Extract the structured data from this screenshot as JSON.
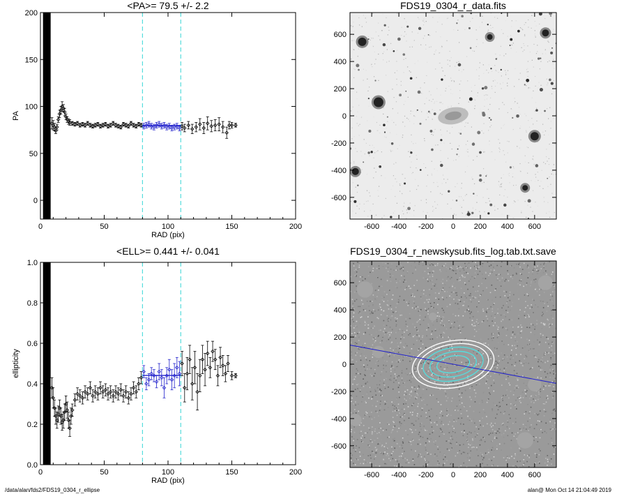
{
  "footer": {
    "left": "/data/alan/fds2/FDS19_0304_r_ellipse",
    "right": "alan@  Mon Oct 14 21:04:49 2019"
  },
  "colors": {
    "fit": "#2222cc",
    "dashed": "#55dddd",
    "points": "#000000"
  },
  "chart_data": [
    {
      "id": "pa",
      "type": "scatter",
      "title": "<PA>=  79.5 +/-   2.2",
      "xlabel": "RAD (pix)",
      "ylabel": "PA",
      "xlim": [
        0,
        200
      ],
      "ylim": [
        -20,
        200
      ],
      "xticks": [
        0,
        50,
        100,
        150,
        200
      ],
      "yticks": [
        0,
        50,
        100,
        150,
        200
      ],
      "vlines": [
        80,
        110
      ],
      "mean_line": {
        "x": [
          80,
          110
        ],
        "y": 79.5
      },
      "black_band": [
        2,
        8
      ],
      "points": [
        [
          9,
          82,
          6
        ],
        [
          10,
          80,
          5
        ],
        [
          11,
          78,
          4
        ],
        [
          12,
          74,
          3
        ],
        [
          13,
          78,
          3
        ],
        [
          14,
          86,
          3
        ],
        [
          15,
          92,
          4
        ],
        [
          16,
          96,
          4
        ],
        [
          17,
          100,
          5
        ],
        [
          18,
          98,
          4
        ],
        [
          19,
          94,
          4
        ],
        [
          20,
          89,
          3
        ],
        [
          21,
          86,
          3
        ],
        [
          22,
          84,
          3
        ],
        [
          23,
          83,
          3
        ],
        [
          25,
          82,
          2
        ],
        [
          27,
          81,
          2
        ],
        [
          29,
          82,
          2
        ],
        [
          31,
          80,
          2
        ],
        [
          33,
          81,
          2
        ],
        [
          35,
          80,
          2
        ],
        [
          37,
          82,
          2
        ],
        [
          39,
          80,
          2
        ],
        [
          41,
          79,
          2
        ],
        [
          43,
          80,
          2
        ],
        [
          45,
          81,
          2
        ],
        [
          47,
          79,
          2
        ],
        [
          49,
          80,
          2
        ],
        [
          51,
          81,
          2
        ],
        [
          53,
          79,
          2
        ],
        [
          55,
          80,
          2
        ],
        [
          57,
          82,
          2
        ],
        [
          59,
          80,
          2
        ],
        [
          61,
          79,
          2
        ],
        [
          63,
          78,
          2
        ],
        [
          65,
          81,
          2
        ],
        [
          67,
          80,
          2
        ],
        [
          69,
          79,
          2
        ],
        [
          71,
          82,
          2
        ],
        [
          73,
          80,
          2
        ],
        [
          75,
          79,
          2
        ],
        [
          77,
          81,
          2
        ],
        [
          79,
          80,
          2
        ],
        [
          81,
          79,
          3
        ],
        [
          83,
          80,
          3
        ],
        [
          85,
          81,
          3
        ],
        [
          87,
          79,
          3
        ],
        [
          89,
          78,
          3
        ],
        [
          91,
          80,
          3
        ],
        [
          93,
          81,
          3
        ],
        [
          95,
          79,
          3
        ],
        [
          97,
          80,
          3
        ],
        [
          99,
          78,
          3
        ],
        [
          101,
          79,
          3
        ],
        [
          103,
          77,
          3
        ],
        [
          105,
          78,
          3
        ],
        [
          107,
          79,
          3
        ],
        [
          109,
          77,
          3
        ],
        [
          111,
          79,
          4
        ],
        [
          113,
          77,
          4
        ],
        [
          116,
          80,
          4
        ],
        [
          119,
          76,
          5
        ],
        [
          122,
          78,
          5
        ],
        [
          125,
          81,
          6
        ],
        [
          128,
          77,
          6
        ],
        [
          131,
          82,
          7
        ],
        [
          134,
          79,
          6
        ],
        [
          137,
          80,
          6
        ],
        [
          140,
          81,
          7
        ],
        [
          143,
          78,
          6
        ],
        [
          146,
          72,
          6
        ],
        [
          148,
          80,
          4
        ],
        [
          150,
          80,
          3
        ],
        [
          153,
          80,
          2
        ]
      ]
    },
    {
      "id": "ell",
      "type": "scatter",
      "title": "<ELL>= 0.441 +/-  0.041",
      "xlabel": "RAD (pix)",
      "ylabel": "ellipticity",
      "xlim": [
        0,
        200
      ],
      "ylim": [
        0.0,
        1.0
      ],
      "xticks": [
        0,
        50,
        100,
        150,
        200
      ],
      "yticks": [
        0.0,
        0.2,
        0.4,
        0.6,
        0.8,
        1.0
      ],
      "ytick_labels": [
        "0.0",
        "0.2",
        "0.4",
        "0.6",
        "0.8",
        "1.0"
      ],
      "vlines": [
        80,
        110
      ],
      "mean_line": {
        "x": [
          80,
          110
        ],
        "y": 0.441
      },
      "black_band": [
        2,
        8
      ],
      "points": [
        [
          9,
          0.38,
          0.05
        ],
        [
          10,
          0.33,
          0.05
        ],
        [
          11,
          0.28,
          0.04
        ],
        [
          12,
          0.24,
          0.04
        ],
        [
          13,
          0.22,
          0.04
        ],
        [
          14,
          0.25,
          0.04
        ],
        [
          15,
          0.28,
          0.04
        ],
        [
          16,
          0.24,
          0.04
        ],
        [
          17,
          0.21,
          0.04
        ],
        [
          18,
          0.22,
          0.04
        ],
        [
          19,
          0.26,
          0.04
        ],
        [
          20,
          0.3,
          0.04
        ],
        [
          21,
          0.27,
          0.04
        ],
        [
          22,
          0.22,
          0.04
        ],
        [
          23,
          0.18,
          0.04
        ],
        [
          24,
          0.24,
          0.04
        ],
        [
          25,
          0.27,
          0.03
        ],
        [
          27,
          0.32,
          0.03
        ],
        [
          29,
          0.35,
          0.03
        ],
        [
          31,
          0.34,
          0.03
        ],
        [
          33,
          0.33,
          0.03
        ],
        [
          35,
          0.36,
          0.03
        ],
        [
          37,
          0.35,
          0.03
        ],
        [
          39,
          0.38,
          0.03
        ],
        [
          41,
          0.34,
          0.03
        ],
        [
          43,
          0.36,
          0.03
        ],
        [
          45,
          0.35,
          0.03
        ],
        [
          47,
          0.38,
          0.03
        ],
        [
          49,
          0.36,
          0.03
        ],
        [
          51,
          0.37,
          0.03
        ],
        [
          53,
          0.35,
          0.03
        ],
        [
          55,
          0.36,
          0.03
        ],
        [
          57,
          0.34,
          0.03
        ],
        [
          59,
          0.36,
          0.03
        ],
        [
          61,
          0.35,
          0.03
        ],
        [
          63,
          0.37,
          0.03
        ],
        [
          65,
          0.34,
          0.03
        ],
        [
          67,
          0.36,
          0.03
        ],
        [
          69,
          0.33,
          0.03
        ],
        [
          71,
          0.35,
          0.03
        ],
        [
          73,
          0.38,
          0.03
        ],
        [
          75,
          0.36,
          0.03
        ],
        [
          77,
          0.4,
          0.03
        ],
        [
          79,
          0.43,
          0.03
        ],
        [
          81,
          0.46,
          0.03
        ],
        [
          83,
          0.4,
          0.03
        ],
        [
          85,
          0.42,
          0.03
        ],
        [
          87,
          0.45,
          0.03
        ],
        [
          89,
          0.44,
          0.03
        ],
        [
          91,
          0.41,
          0.03
        ],
        [
          93,
          0.46,
          0.04
        ],
        [
          95,
          0.43,
          0.04
        ],
        [
          97,
          0.38,
          0.05
        ],
        [
          99,
          0.44,
          0.04
        ],
        [
          101,
          0.47,
          0.05
        ],
        [
          103,
          0.42,
          0.05
        ],
        [
          105,
          0.44,
          0.06
        ],
        [
          107,
          0.48,
          0.05
        ],
        [
          109,
          0.45,
          0.06
        ],
        [
          111,
          0.5,
          0.06
        ],
        [
          113,
          0.38,
          0.07
        ],
        [
          115,
          0.45,
          0.08
        ],
        [
          117,
          0.52,
          0.07
        ],
        [
          119,
          0.4,
          0.08
        ],
        [
          121,
          0.48,
          0.08
        ],
        [
          123,
          0.36,
          0.09
        ],
        [
          125,
          0.44,
          0.08
        ],
        [
          127,
          0.52,
          0.07
        ],
        [
          129,
          0.47,
          0.08
        ],
        [
          131,
          0.55,
          0.06
        ],
        [
          133,
          0.48,
          0.05
        ],
        [
          135,
          0.56,
          0.05
        ],
        [
          137,
          0.52,
          0.05
        ],
        [
          139,
          0.44,
          0.05
        ],
        [
          141,
          0.53,
          0.05
        ],
        [
          143,
          0.49,
          0.05
        ],
        [
          145,
          0.45,
          0.04
        ],
        [
          147,
          0.5,
          0.04
        ],
        [
          150,
          0.44,
          0.02
        ],
        [
          153,
          0.44,
          0.01
        ]
      ]
    },
    {
      "id": "img_data",
      "type": "heatmap",
      "title": "FDS19_0304_r_data.fits",
      "xlim": [
        -760,
        760
      ],
      "ylim": [
        -760,
        760
      ],
      "xticks": [
        -600,
        -400,
        -200,
        0,
        200,
        400,
        600
      ],
      "yticks": [
        -600,
        -400,
        -200,
        0,
        200,
        400,
        600
      ]
    },
    {
      "id": "img_model",
      "type": "heatmap",
      "title": "FDS19_0304_r_newskysub.fits_log.tab.txt.save",
      "xlim": [
        -760,
        760
      ],
      "ylim": [
        -760,
        760
      ],
      "xticks": [
        -600,
        -400,
        -200,
        0,
        200,
        400,
        600
      ],
      "yticks": [
        -600,
        -400,
        -200,
        0,
        200,
        400,
        600
      ],
      "pa_line_angle_deg": 79.5
    }
  ]
}
